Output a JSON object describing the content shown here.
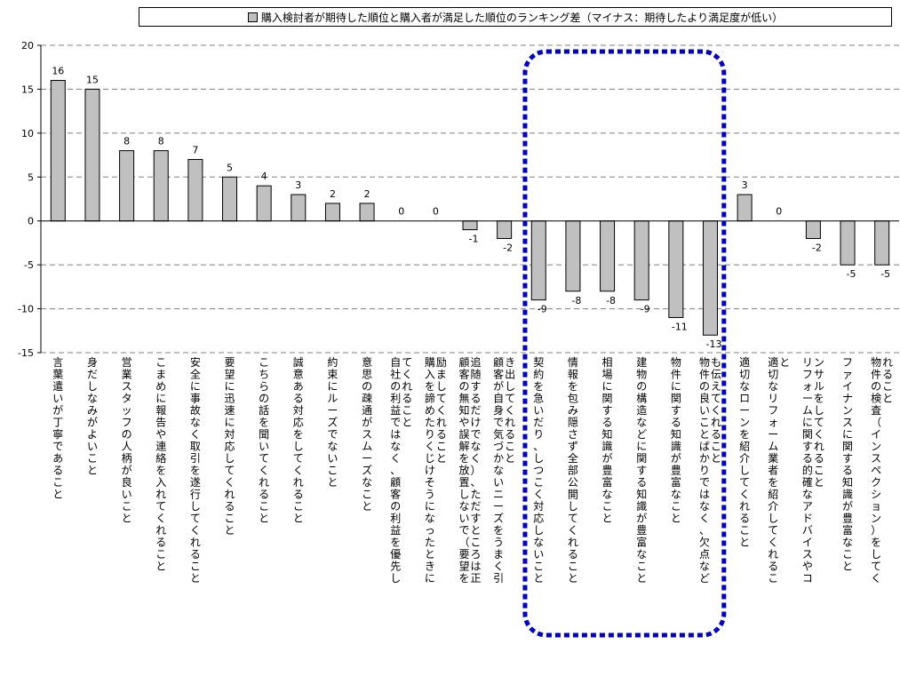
{
  "legend": {
    "label": "購入検討者が期待した順位と購入者が満足した順位のランキング差（マイナス：期待したより満足度が低い）"
  },
  "colors": {
    "bar_fill": "#c0c0c0",
    "bar_stroke": "#000000",
    "highlight_border": "#0000cc",
    "gridline": "#808080"
  },
  "chart_data": {
    "type": "bar",
    "ylim": [
      -15,
      20
    ],
    "yticks": [
      20,
      15,
      10,
      5,
      0,
      -5,
      -10,
      -15
    ],
    "grid": "dashed horizontal",
    "legend_position": "top",
    "categories": [
      "言葉遣いが丁寧であること",
      "身だしなみがよいこと",
      "営業スタッフの人柄が良いこと",
      "こまめに報告や連絡を入れてくれること",
      "安全に事故なく取引を遂行してくれること",
      "要望に迅速に対応してくれること",
      "こちらの話を聞いてくれること",
      "誠意ある対応をしてくれること",
      "約束にルーズでないこと",
      "意思の疎通がスムーズなこと",
      "自社の利益ではなく、顧客の利益を優先してくれること",
      "購入を諦めたりくじけそうになったときに励ましてくれること",
      "顧客の無知や誤解を放置しないで（要望を追随するだけでなく）、ただすところは正す",
      "顧客が自身で気づかないニーズをうまく引き出してくれること",
      "契約を急いだり、しつこく対応しないこと",
      "情報を包み隠さず全部公開してくれること",
      "相場に関する知識が豊富なこと",
      "建物の構造などに関する知識が豊富なこと",
      "物件に関する知識が豊富なこと",
      "物件の良いことばかりではなく、欠点なども伝えてくれること",
      "適切なローンを紹介してくれること",
      "適切なリフォーム業者を紹介してくれること",
      "リフォームに関する的確なアドバイスやコンサルをしてくれること",
      "ファイナンスに関する知識が豊富なこと",
      "物件の検査（インスペクション）をしてくれること"
    ],
    "category_lines": [
      [
        "言葉遣いが丁寧であること"
      ],
      [
        "身だしなみがよいこと"
      ],
      [
        "営業スタッフの人柄が良いこと"
      ],
      [
        "こまめに報告や連絡を入れてくれること"
      ],
      [
        "安全に事故なく取引を遂行してくれること"
      ],
      [
        "要望に迅速に対応してくれること"
      ],
      [
        "こちらの話を聞いてくれること"
      ],
      [
        "誠意ある対応をしてくれること"
      ],
      [
        "約束にルーズでないこと"
      ],
      [
        "意思の疎通がスムーズなこと"
      ],
      [
        "自社の利益ではなく、顧客の利益を優先し",
        "てくれること"
      ],
      [
        "購入を諦めたりくじけそうになったときに",
        "励ましてくれること"
      ],
      [
        "顧客の無知や誤解を放置しないで（要望を",
        "追随するだけでなく）、ただすところは正"
      ],
      [
        "顧客が自身で気づかないニーズをうまく引",
        "き出してくれること"
      ],
      [
        "契約を急いだり、しつこく対応しないこと"
      ],
      [
        "情報を包み隠さず全部公開してくれること"
      ],
      [
        "相場に関する知識が豊富なこと"
      ],
      [
        "建物の構造などに関する知識が豊富なこと"
      ],
      [
        "物件に関する知識が豊富なこと"
      ],
      [
        "物件の良いことばかりではなく、欠点など",
        "も伝えてくれること"
      ],
      [
        "適切なローンを紹介してくれること"
      ],
      [
        "適切なリフォーム業者を紹介してくれるこ",
        "と"
      ],
      [
        "リフォームに関する的確なアドバイスやコ",
        "ンサルをしてくれること"
      ],
      [
        "ファイナンスに関する知識が豊富なこと"
      ],
      [
        "物件の検査（インスペクション）をしてく",
        "れること"
      ]
    ],
    "values": [
      16,
      15,
      8,
      8,
      7,
      5,
      4,
      3,
      2,
      2,
      0,
      0,
      -1,
      -2,
      -9,
      -8,
      -8,
      -9,
      -11,
      -13,
      3,
      0,
      -2,
      -5,
      -5
    ],
    "highlight_range": [
      14,
      19
    ]
  }
}
